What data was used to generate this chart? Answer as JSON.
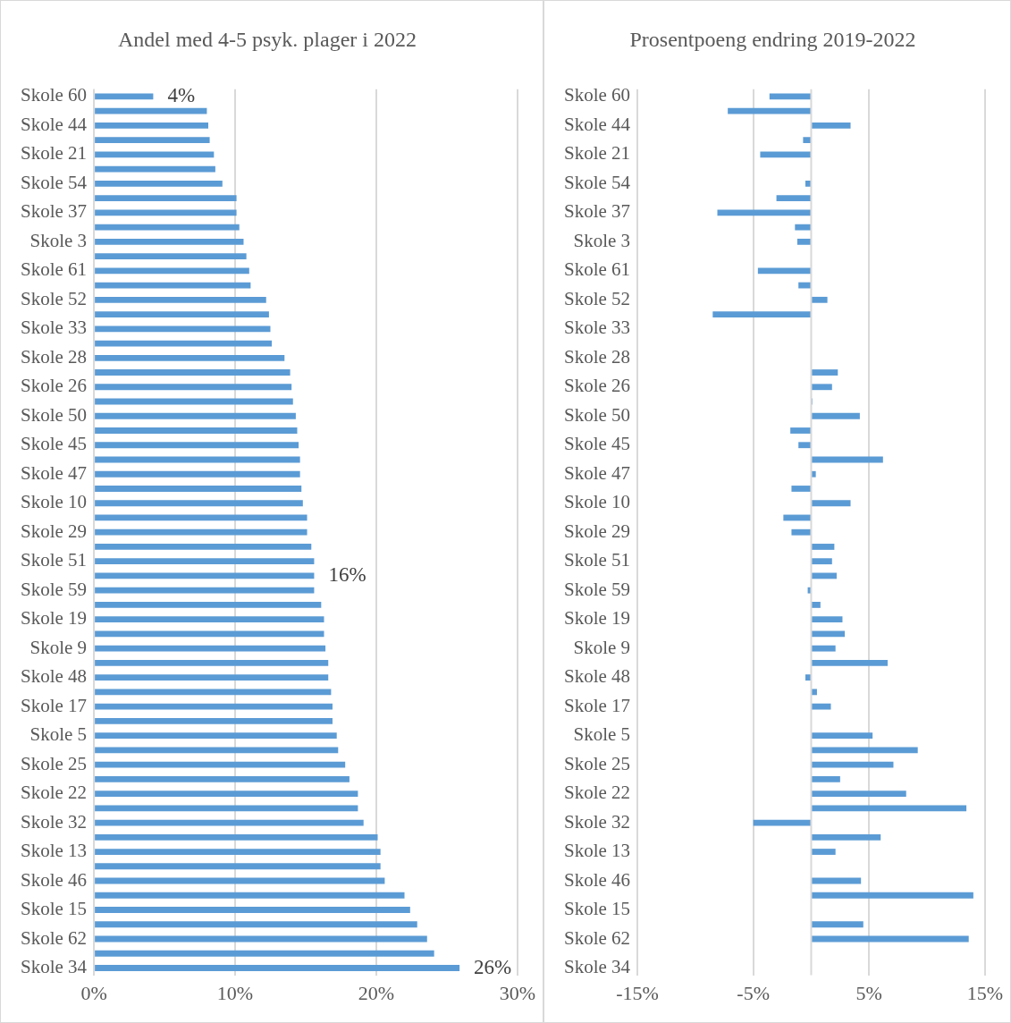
{
  "chart_data": [
    {
      "type": "bar",
      "orientation": "horizontal",
      "title": "Andel med 4-5 psyk. plager i 2022",
      "categories": [
        "Skole 60",
        null,
        "Skole 44",
        null,
        "Skole 21",
        null,
        "Skole 54",
        null,
        "Skole 37",
        null,
        "Skole 3",
        null,
        "Skole 61",
        null,
        "Skole 52",
        null,
        "Skole 33",
        null,
        "Skole 28",
        null,
        "Skole 26",
        null,
        "Skole 50",
        null,
        "Skole 45",
        null,
        "Skole 47",
        null,
        "Skole 10",
        null,
        "Skole 29",
        null,
        "Skole 51",
        null,
        "Skole 59",
        null,
        "Skole 19",
        null,
        "Skole 9",
        null,
        "Skole 48",
        null,
        "Skole 17",
        null,
        "Skole 5",
        null,
        "Skole 25",
        null,
        "Skole 22",
        null,
        "Skole 32",
        null,
        "Skole 13",
        null,
        "Skole 46",
        null,
        "Skole 15",
        null,
        "Skole 62",
        null,
        "Skole 34"
      ],
      "values": [
        4.2,
        8.0,
        8.1,
        8.2,
        8.5,
        8.6,
        9.1,
        10.1,
        10.1,
        10.3,
        10.6,
        10.8,
        11.0,
        11.1,
        12.2,
        12.4,
        12.5,
        12.6,
        13.5,
        13.9,
        14.0,
        14.1,
        14.3,
        14.4,
        14.5,
        14.6,
        14.6,
        14.7,
        14.8,
        15.1,
        15.1,
        15.4,
        15.6,
        15.6,
        15.6,
        16.1,
        16.3,
        16.3,
        16.4,
        16.6,
        16.6,
        16.8,
        16.9,
        16.9,
        17.2,
        17.3,
        17.8,
        18.1,
        18.7,
        18.7,
        19.1,
        20.1,
        20.3,
        20.3,
        20.6,
        22.0,
        22.4,
        22.9,
        23.6,
        24.1,
        25.9
      ],
      "value_labels": [
        "4%",
        null,
        null,
        null,
        null,
        null,
        null,
        null,
        null,
        null,
        null,
        null,
        null,
        null,
        null,
        null,
        null,
        null,
        null,
        null,
        null,
        null,
        null,
        null,
        null,
        null,
        null,
        null,
        null,
        null,
        null,
        null,
        null,
        "16%",
        null,
        null,
        null,
        null,
        null,
        null,
        null,
        null,
        null,
        null,
        null,
        null,
        null,
        null,
        null,
        null,
        null,
        null,
        null,
        null,
        null,
        null,
        null,
        null,
        null,
        null,
        "26%"
      ],
      "color": "#5b9bd5",
      "xlim": [
        0,
        30
      ],
      "xticks": [
        {
          "value": 0,
          "label": "0%"
        },
        {
          "value": 10,
          "label": "10%"
        },
        {
          "value": 20,
          "label": "20%"
        },
        {
          "value": 30,
          "label": "30%"
        }
      ],
      "grid": "x",
      "legend": false
    },
    {
      "type": "bar",
      "orientation": "horizontal",
      "title": "Prosentpoeng endring 2019-2022",
      "categories": [
        "Skole 60",
        null,
        "Skole 44",
        null,
        "Skole 21",
        null,
        "Skole 54",
        null,
        "Skole 37",
        null,
        "Skole 3",
        null,
        "Skole 61",
        null,
        "Skole 52",
        null,
        "Skole 33",
        null,
        "Skole 28",
        null,
        "Skole 26",
        null,
        "Skole 50",
        null,
        "Skole 45",
        null,
        "Skole 47",
        null,
        "Skole 10",
        null,
        "Skole 29",
        null,
        "Skole 51",
        null,
        "Skole 59",
        null,
        "Skole 19",
        null,
        "Skole 9",
        null,
        "Skole 48",
        null,
        "Skole 17",
        null,
        "Skole 5",
        null,
        "Skole 25",
        null,
        "Skole 22",
        null,
        "Skole 32",
        null,
        "Skole 13",
        null,
        "Skole 46",
        null,
        "Skole 15",
        null,
        "Skole 62",
        null,
        "Skole 34"
      ],
      "values": [
        -3.6,
        -7.2,
        3.4,
        -0.7,
        -4.4,
        null,
        -0.5,
        -3.0,
        -8.1,
        -1.4,
        -1.2,
        null,
        -4.6,
        -1.1,
        1.4,
        -8.5,
        null,
        null,
        null,
        2.3,
        1.8,
        0.1,
        4.2,
        -1.8,
        -1.1,
        6.2,
        0.4,
        -1.7,
        3.4,
        -2.4,
        -1.7,
        2.0,
        1.8,
        2.2,
        -0.3,
        0.8,
        2.7,
        2.9,
        2.1,
        6.6,
        -0.5,
        0.5,
        1.7,
        null,
        5.3,
        9.2,
        7.1,
        2.5,
        8.2,
        13.4,
        -5.0,
        6.0,
        2.1,
        null,
        4.3,
        14.0,
        null,
        4.5,
        13.6,
        null,
        null
      ],
      "color": "#5b9bd5",
      "xlim": [
        -15,
        15
      ],
      "xticks": [
        {
          "value": -15,
          "label": "-15%"
        },
        {
          "value": -5,
          "label": "-5%"
        },
        {
          "value": 5,
          "label": "5%"
        },
        {
          "value": 15,
          "label": "15%"
        }
      ],
      "grid": "x",
      "legend": false
    }
  ]
}
